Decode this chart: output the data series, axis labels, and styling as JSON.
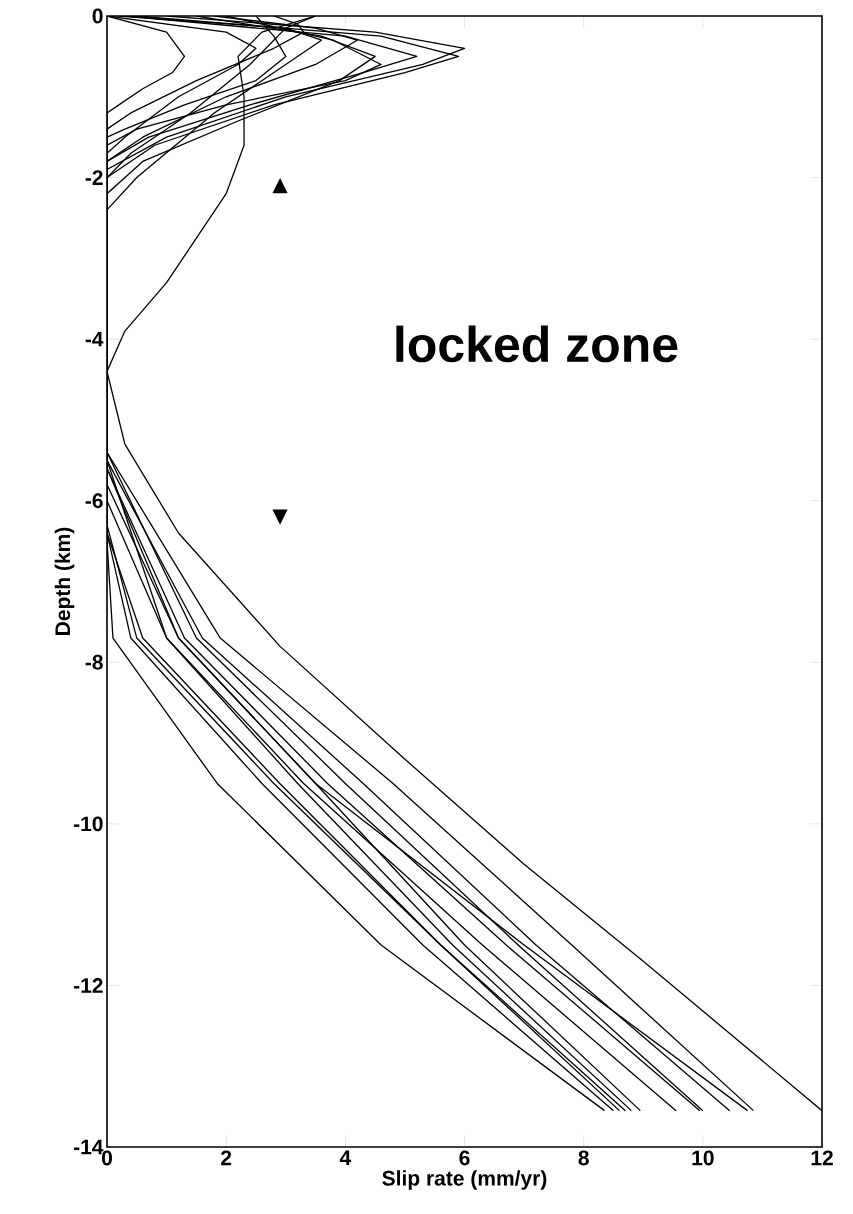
{
  "chart_data": {
    "type": "line",
    "xlabel": "Slip rate (mm/yr)",
    "ylabel": "Depth (km)",
    "xlim": [
      0,
      12
    ],
    "ylim": [
      -14,
      0
    ],
    "xticks": [
      0,
      2,
      4,
      6,
      8,
      10,
      12
    ],
    "yticks": [
      -14,
      -12,
      -10,
      -8,
      -6,
      -4,
      -2,
      0
    ],
    "annotations": [
      "locked zone",
      "▲",
      "▼"
    ],
    "series": [
      {
        "color": "#000000",
        "x": [
          1.0,
          4.5,
          6.0,
          5.3,
          3.0,
          1.0,
          0,
          0,
          0.1,
          1.85,
          4.6,
          8.35
        ],
        "values": [
          0,
          -0.2,
          -0.4,
          -0.6,
          -1.0,
          -1.5,
          -1.9,
          -6.5,
          -7.7,
          -9.5,
          -11.5,
          -13.55
        ]
      },
      {
        "color": "#000000",
        "x": [
          0.5,
          4.6,
          5.9,
          5.0,
          2.8,
          0.8,
          0,
          0,
          0.4,
          2.6,
          5.3,
          8.5
        ],
        "values": [
          0,
          -0.25,
          -0.5,
          -0.7,
          -1.1,
          -1.6,
          -2.0,
          -6.4,
          -7.7,
          -9.5,
          -11.5,
          -13.55
        ]
      },
      {
        "color": "#000000",
        "x": [
          0.3,
          4.0,
          5.2,
          4.3,
          2.4,
          0.7,
          0,
          0,
          0.6,
          2.9,
          5.6,
          8.6
        ],
        "values": [
          0,
          -0.25,
          -0.5,
          -0.7,
          -1.1,
          -1.5,
          -1.8,
          -6.4,
          -7.7,
          -9.5,
          -11.5,
          -13.55
        ]
      },
      {
        "color": "#000000",
        "x": [
          1.5,
          3.6,
          4.5,
          3.9,
          2.2,
          0.6,
          0,
          0,
          0.5,
          2.8,
          5.6,
          8.7
        ],
        "values": [
          0,
          -0.25,
          -0.5,
          -0.8,
          -1.3,
          -1.8,
          -2.2,
          -6.3,
          -7.7,
          -9.5,
          -11.5,
          -13.55
        ]
      },
      {
        "color": "#000000",
        "x": [
          2.0,
          3.8,
          4.6,
          4.0,
          2.0,
          0.5,
          0,
          0,
          1.0,
          3.2,
          5.8,
          8.8
        ],
        "values": [
          0,
          -0.3,
          -0.6,
          -0.8,
          -1.1,
          -1.4,
          -1.6,
          -6.0,
          -7.7,
          -9.5,
          -11.5,
          -13.55
        ]
      },
      {
        "color": "#000000",
        "x": [
          0.2,
          3.0,
          3.6,
          3.0,
          1.8,
          0.5,
          0,
          0,
          1.2,
          3.5,
          6.0,
          8.95
        ],
        "values": [
          0,
          -0.15,
          -0.3,
          -0.6,
          -1.2,
          -2.0,
          -2.4,
          -5.8,
          -7.7,
          -9.5,
          -11.5,
          -13.55
        ]
      },
      {
        "color": "#000000",
        "x": [
          2.5,
          2.8,
          3.0,
          2.5,
          1.3,
          0.3,
          0,
          0,
          1.0,
          3.3,
          6.3,
          9.55
        ],
        "values": [
          0,
          -0.25,
          -0.5,
          -0.8,
          -1.1,
          -1.4,
          -1.5,
          -5.5,
          -7.7,
          -9.5,
          -11.5,
          -13.55
        ]
      },
      {
        "color": "#000000",
        "x": [
          1.8,
          3.5,
          4.2,
          3.5,
          2.0,
          0.6,
          0,
          0,
          1.3,
          3.7,
          6.7,
          9.95
        ],
        "values": [
          0,
          -0.15,
          -0.3,
          -0.6,
          -1.0,
          -1.5,
          -1.8,
          -5.6,
          -7.7,
          -9.5,
          -11.5,
          -13.55
        ]
      },
      {
        "color": "#000000",
        "x": [
          2.8,
          3.2,
          3.3,
          2.8,
          1.5,
          0.4,
          0,
          0,
          1.5,
          4.0,
          6.9,
          10.0
        ],
        "values": [
          0,
          -0.1,
          -0.2,
          -0.4,
          -0.8,
          -1.2,
          -1.4,
          -5.4,
          -7.7,
          -9.5,
          -11.5,
          -13.55
        ]
      },
      {
        "color": "#000000",
        "x": [
          3.5,
          3.0,
          2.8,
          2.4,
          1.4,
          0.4,
          0,
          0,
          1.6,
          4.3,
          7.2,
          10.45
        ],
        "values": [
          0,
          -0.15,
          -0.3,
          -0.6,
          -1.2,
          -1.7,
          -2.0,
          -5.5,
          -7.7,
          -9.5,
          -11.5,
          -13.55
        ]
      },
      {
        "color": "#000000",
        "x": [
          0,
          2.0,
          2.5,
          2.2,
          1.2,
          0.3,
          0,
          0,
          1.2,
          3.5,
          7.0,
          10.75
        ],
        "values": [
          0,
          -0.2,
          -0.4,
          -0.6,
          -1.0,
          -1.5,
          -1.7,
          -5.6,
          -7.7,
          -9.5,
          -11.5,
          -13.55
        ]
      },
      {
        "color": "#000000",
        "x": [
          0,
          1.0,
          1.3,
          1.1,
          0.6,
          0.2,
          0,
          0,
          1.9,
          4.8,
          7.8,
          10.85
        ],
        "values": [
          0,
          -0.2,
          -0.5,
          -0.7,
          -0.9,
          -1.1,
          -1.2,
          -5.4,
          -7.7,
          -9.5,
          -11.5,
          -13.55
        ]
      },
      {
        "color": "#000000",
        "x": [
          3.5,
          2.6,
          2.2,
          2.3,
          2.3,
          2.0,
          1.0,
          0.3,
          0,
          0.3,
          1.2,
          2.9,
          5.0,
          7.0,
          9.0,
          12.0
        ],
        "values": [
          0,
          -0.2,
          -0.5,
          -1.0,
          -1.6,
          -2.2,
          -3.3,
          -3.9,
          -4.4,
          -5.3,
          -6.4,
          -7.8,
          -9.2,
          -10.5,
          -11.7,
          -13.55
        ]
      }
    ]
  }
}
